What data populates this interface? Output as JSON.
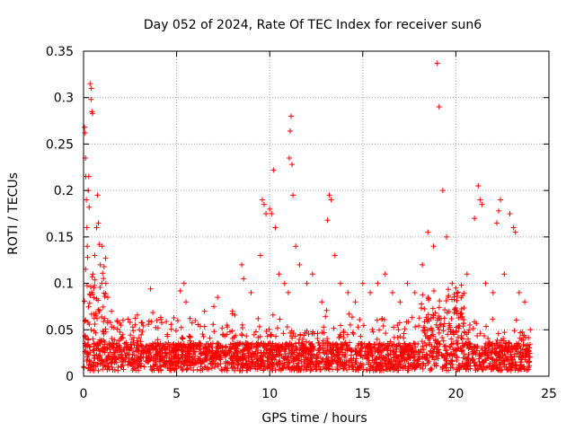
{
  "chart_data": {
    "type": "scatter",
    "title": "Day 052 of 2024, Rate Of TEC Index for receiver sun6",
    "xlabel": "GPS time / hours",
    "ylabel": "ROTI / TECUs",
    "xlim": [
      0,
      25
    ],
    "ylim": [
      0,
      0.35
    ],
    "x_ticks": [
      0,
      5,
      10,
      15,
      20,
      25
    ],
    "y_ticks": [
      0,
      0.05,
      0.1,
      0.15,
      0.2,
      0.25,
      0.3,
      0.35
    ],
    "x_tick_labels": [
      "0",
      "5",
      "10",
      "15",
      "20",
      "25"
    ],
    "y_tick_labels": [
      "0",
      "0.05",
      "0.1",
      "0.15",
      "0.2",
      "0.25",
      "0.3",
      "0.35"
    ],
    "grid": true,
    "marker": "+",
    "color": "#ff0000",
    "series": [
      {
        "name": "ROTI",
        "points": [
          [
            0.05,
            0.268
          ],
          [
            0.08,
            0.262
          ],
          [
            0.1,
            0.235
          ],
          [
            0.12,
            0.215
          ],
          [
            0.15,
            0.19
          ],
          [
            0.18,
            0.16
          ],
          [
            0.2,
            0.14
          ],
          [
            0.22,
            0.128
          ],
          [
            0.25,
            0.2
          ],
          [
            0.28,
            0.215
          ],
          [
            0.3,
            0.182
          ],
          [
            0.35,
            0.315
          ],
          [
            0.4,
            0.298
          ],
          [
            0.42,
            0.31
          ],
          [
            0.45,
            0.285
          ],
          [
            0.48,
            0.283
          ],
          [
            0.5,
            0.11
          ],
          [
            0.55,
            0.095
          ],
          [
            0.6,
            0.13
          ],
          [
            0.7,
            0.16
          ],
          [
            0.75,
            0.195
          ],
          [
            0.8,
            0.165
          ],
          [
            0.85,
            0.142
          ],
          [
            0.9,
            0.12
          ],
          [
            1.0,
            0.14
          ],
          [
            1.1,
            0.118
          ],
          [
            1.2,
            0.1
          ],
          [
            1.3,
            0.085
          ],
          [
            1.5,
            0.07
          ],
          [
            1.8,
            0.06
          ],
          [
            2.0,
            0.055
          ],
          [
            2.5,
            0.058
          ],
          [
            3.0,
            0.05
          ],
          [
            3.6,
            0.094
          ],
          [
            4.0,
            0.052
          ],
          [
            4.5,
            0.045
          ],
          [
            5.2,
            0.092
          ],
          [
            5.4,
            0.1
          ],
          [
            5.5,
            0.08
          ],
          [
            6.0,
            0.06
          ],
          [
            6.5,
            0.07
          ],
          [
            7.0,
            0.075
          ],
          [
            7.2,
            0.085
          ],
          [
            8.0,
            0.07
          ],
          [
            8.5,
            0.12
          ],
          [
            8.6,
            0.105
          ],
          [
            9.0,
            0.09
          ],
          [
            9.5,
            0.13
          ],
          [
            9.6,
            0.19
          ],
          [
            9.7,
            0.185
          ],
          [
            9.8,
            0.175
          ],
          [
            10.0,
            0.18
          ],
          [
            10.1,
            0.175
          ],
          [
            10.2,
            0.222
          ],
          [
            10.3,
            0.16
          ],
          [
            10.5,
            0.11
          ],
          [
            10.8,
            0.1
          ],
          [
            11.0,
            0.09
          ],
          [
            11.05,
            0.235
          ],
          [
            11.1,
            0.264
          ],
          [
            11.15,
            0.28
          ],
          [
            11.2,
            0.228
          ],
          [
            11.25,
            0.195
          ],
          [
            11.4,
            0.14
          ],
          [
            11.6,
            0.12
          ],
          [
            12.0,
            0.1
          ],
          [
            12.3,
            0.11
          ],
          [
            12.8,
            0.08
          ],
          [
            13.1,
            0.168
          ],
          [
            13.2,
            0.195
          ],
          [
            13.3,
            0.19
          ],
          [
            13.5,
            0.13
          ],
          [
            13.8,
            0.1
          ],
          [
            14.2,
            0.09
          ],
          [
            14.6,
            0.08
          ],
          [
            15.0,
            0.1
          ],
          [
            15.4,
            0.09
          ],
          [
            15.8,
            0.1
          ],
          [
            16.2,
            0.11
          ],
          [
            16.6,
            0.09
          ],
          [
            17.0,
            0.08
          ],
          [
            17.4,
            0.1
          ],
          [
            17.8,
            0.09
          ],
          [
            18.2,
            0.12
          ],
          [
            18.5,
            0.155
          ],
          [
            18.8,
            0.14
          ],
          [
            19.0,
            0.337
          ],
          [
            19.1,
            0.29
          ],
          [
            19.3,
            0.2
          ],
          [
            19.5,
            0.15
          ],
          [
            19.8,
            0.1
          ],
          [
            20.0,
            0.095
          ],
          [
            20.3,
            0.098
          ],
          [
            20.6,
            0.11
          ],
          [
            21.0,
            0.17
          ],
          [
            21.2,
            0.205
          ],
          [
            21.3,
            0.19
          ],
          [
            21.4,
            0.185
          ],
          [
            21.6,
            0.1
          ],
          [
            22.0,
            0.09
          ],
          [
            22.2,
            0.165
          ],
          [
            22.3,
            0.178
          ],
          [
            22.4,
            0.19
          ],
          [
            22.6,
            0.11
          ],
          [
            22.9,
            0.175
          ],
          [
            23.1,
            0.16
          ],
          [
            23.2,
            0.155
          ],
          [
            23.4,
            0.09
          ],
          [
            23.7,
            0.08
          ],
          [
            24.0,
            0.05
          ]
        ]
      }
    ]
  }
}
